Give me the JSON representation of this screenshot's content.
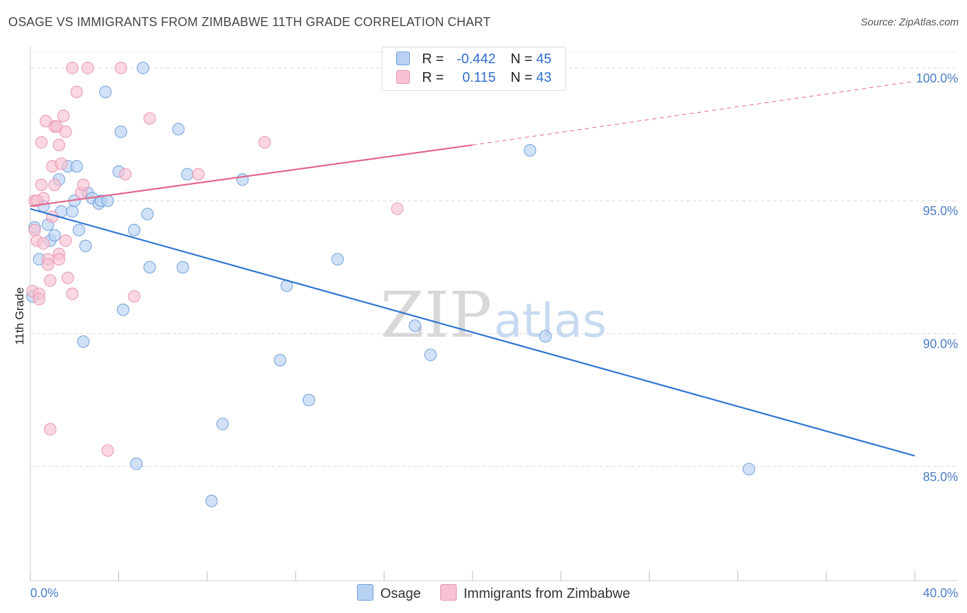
{
  "header": {
    "title": "OSAGE VS IMMIGRANTS FROM ZIMBABWE 11TH GRADE CORRELATION CHART",
    "source": "Source: ZipAtlas.com"
  },
  "legend": {
    "rows": [
      {
        "r_label": "R =",
        "r_value": "-0.442",
        "n_label": "N =",
        "n_value": "45"
      },
      {
        "r_label": "R =",
        "r_value": "0.115",
        "n_label": "N =",
        "n_value": "43"
      }
    ],
    "bottom": [
      "Osage",
      "Immigrants from Zimbabwe"
    ]
  },
  "watermark": {
    "zip": "ZIP",
    "atlas": "atlas"
  },
  "colors": {
    "blue_fill": "#b8d1f2",
    "blue_stroke": "#6f9fdb",
    "blue_line": "#2f74d0",
    "pink_fill": "#f7c2d2",
    "pink_stroke": "#e895b0",
    "pink_line": "#e2668f",
    "grid": "#d9d9d9"
  },
  "chart_data": {
    "type": "scatter",
    "title": "OSAGE VS IMMIGRANTS FROM ZIMBABWE 11TH GRADE CORRELATION CHART",
    "xlabel": "",
    "ylabel": "11th Grade",
    "xlim": [
      0,
      40
    ],
    "ylim": [
      80.7,
      100.8
    ],
    "x_tick_labels": [
      "0.0%",
      "40.0%"
    ],
    "y_ticks": [
      85,
      90,
      95,
      100
    ],
    "y_tick_labels": [
      "85.0%",
      "90.0%",
      "95.0%",
      "100.0%"
    ],
    "series": [
      {
        "name": "Osage",
        "color": "blue",
        "points": [
          [
            0.1,
            91.4
          ],
          [
            0.2,
            94.0
          ],
          [
            0.4,
            92.8
          ],
          [
            0.6,
            94.8
          ],
          [
            0.8,
            94.1
          ],
          [
            0.9,
            93.5
          ],
          [
            1.1,
            93.7
          ],
          [
            1.3,
            95.8
          ],
          [
            1.4,
            94.6
          ],
          [
            1.7,
            96.3
          ],
          [
            1.9,
            94.6
          ],
          [
            2.0,
            95.0
          ],
          [
            2.1,
            96.3
          ],
          [
            2.2,
            93.9
          ],
          [
            2.4,
            89.7
          ],
          [
            2.5,
            93.3
          ],
          [
            2.6,
            95.3
          ],
          [
            2.8,
            95.1
          ],
          [
            3.1,
            94.9
          ],
          [
            3.2,
            95.0
          ],
          [
            3.4,
            99.1
          ],
          [
            3.5,
            95.0
          ],
          [
            4.0,
            96.1
          ],
          [
            4.1,
            97.6
          ],
          [
            4.2,
            90.9
          ],
          [
            4.7,
            93.9
          ],
          [
            4.8,
            85.1
          ],
          [
            5.1,
            100.0
          ],
          [
            5.3,
            94.5
          ],
          [
            5.4,
            92.5
          ],
          [
            6.7,
            97.7
          ],
          [
            6.9,
            92.5
          ],
          [
            7.1,
            96.0
          ],
          [
            8.2,
            83.7
          ],
          [
            8.7,
            86.6
          ],
          [
            9.6,
            95.8
          ],
          [
            11.3,
            89.0
          ],
          [
            11.6,
            91.8
          ],
          [
            12.6,
            87.5
          ],
          [
            13.9,
            92.8
          ],
          [
            17.4,
            90.3
          ],
          [
            18.1,
            89.2
          ],
          [
            22.6,
            96.9
          ],
          [
            23.3,
            89.9
          ],
          [
            32.5,
            84.9
          ]
        ]
      },
      {
        "name": "Immigrants from Zimbabwe",
        "color": "pink",
        "points": [
          [
            0.1,
            91.6
          ],
          [
            0.2,
            95.0
          ],
          [
            0.2,
            93.9
          ],
          [
            0.3,
            93.5
          ],
          [
            0.4,
            91.5
          ],
          [
            0.4,
            91.3
          ],
          [
            0.5,
            97.2
          ],
          [
            0.5,
            95.6
          ],
          [
            0.6,
            95.1
          ],
          [
            0.7,
            98.0
          ],
          [
            0.8,
            92.8
          ],
          [
            0.8,
            92.6
          ],
          [
            0.9,
            86.4
          ],
          [
            0.9,
            92.0
          ],
          [
            1.0,
            96.3
          ],
          [
            1.0,
            94.4
          ],
          [
            1.1,
            97.8
          ],
          [
            1.1,
            95.6
          ],
          [
            1.2,
            97.8
          ],
          [
            1.3,
            97.1
          ],
          [
            1.3,
            93.0
          ],
          [
            1.3,
            92.8
          ],
          [
            1.4,
            96.4
          ],
          [
            1.5,
            98.2
          ],
          [
            1.6,
            97.6
          ],
          [
            1.6,
            93.5
          ],
          [
            1.7,
            92.1
          ],
          [
            1.9,
            100.0
          ],
          [
            1.9,
            91.5
          ],
          [
            2.1,
            99.1
          ],
          [
            2.3,
            95.3
          ],
          [
            2.4,
            95.6
          ],
          [
            2.6,
            100.0
          ],
          [
            3.5,
            85.6
          ],
          [
            4.1,
            100.0
          ],
          [
            4.3,
            96.0
          ],
          [
            4.7,
            91.4
          ],
          [
            5.4,
            98.1
          ],
          [
            7.6,
            96.0
          ],
          [
            10.6,
            97.2
          ],
          [
            16.6,
            94.7
          ],
          [
            0.3,
            95.0
          ],
          [
            0.6,
            93.4
          ]
        ]
      }
    ],
    "trend_lines": [
      {
        "series": "Osage",
        "x": [
          0,
          40
        ],
        "y": [
          94.7,
          85.4
        ],
        "style": "solid"
      },
      {
        "series": "Immigrants from Zimbabwe",
        "x": [
          0,
          20
        ],
        "y": [
          94.8,
          97.1
        ],
        "style": "solid"
      },
      {
        "series": "Immigrants from Zimbabwe",
        "x": [
          20,
          40
        ],
        "y": [
          97.1,
          99.5
        ],
        "style": "dashed"
      }
    ]
  }
}
